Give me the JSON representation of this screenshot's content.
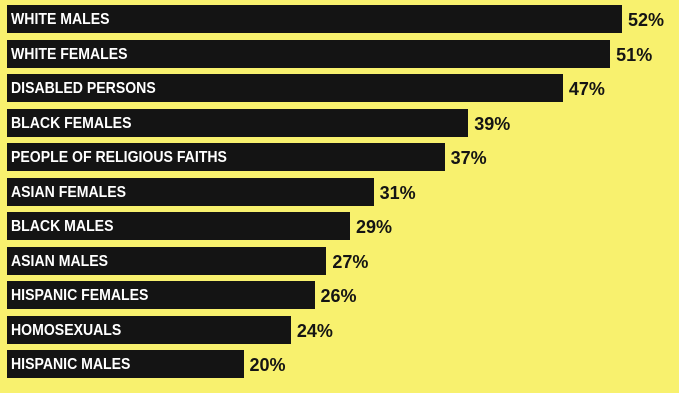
{
  "colors": {
    "background": "#f8f16e",
    "bar": "#141414",
    "bar_text": "#ffffff",
    "value_text": "#141414"
  },
  "chart_data": {
    "type": "bar",
    "orientation": "horizontal",
    "title": "",
    "xlabel": "",
    "ylabel": "",
    "unit": "%",
    "grid": false,
    "legend": "none",
    "xlim": [
      0,
      52
    ],
    "categories": [
      "WHITE MALES",
      "WHITE FEMALES",
      "DISABLED PERSONS",
      "BLACK FEMALES",
      "PEOPLE OF RELIGIOUS FAITHS",
      "ASIAN FEMALES",
      "BLACK MALES",
      "ASIAN MALES",
      "HISPANIC FEMALES",
      "HOMOSEXUALS",
      "HISPANIC MALES"
    ],
    "values": [
      52,
      51,
      47,
      39,
      37,
      31,
      29,
      27,
      26,
      24,
      20
    ],
    "value_labels": [
      "52%",
      "51%",
      "47%",
      "39%",
      "37%",
      "31%",
      "29%",
      "27%",
      "26%",
      "24%",
      "20%"
    ]
  }
}
